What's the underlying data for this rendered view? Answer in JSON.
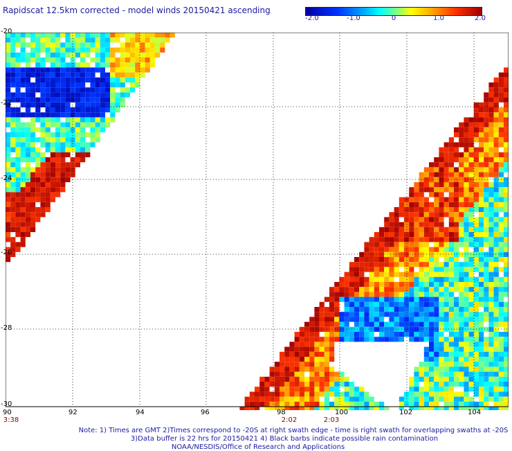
{
  "title": "Rapidscat 12.5km corrected - model winds 20150421 ascending",
  "colorbar": {
    "labels": [
      "-2.0",
      "-1.0",
      "0",
      "1.0",
      "2.0"
    ]
  },
  "axes": {
    "lon_labels": [
      "90",
      "92",
      "94",
      "96",
      "98",
      "100",
      "102",
      "104"
    ],
    "lat_labels": [
      "-20",
      "-22",
      "-24",
      "-26",
      "-28",
      "-30"
    ]
  },
  "times": [
    "3:38",
    "2:02",
    "2:03"
  ],
  "notes": {
    "line1": "Note: 1) Times are GMT 2)Times correspond to -20S at right swath edge - time is right swath for overlapping swaths at -20S",
    "line2": "3)Data buffer is 22 hrs for 20150421 4) Black barbs indicate possible rain contamination",
    "line3": "NOAA/NESDIS/Office of Research and Applications"
  },
  "colors": {
    "text": "#1a1aa0",
    "time": "#8b0000"
  }
}
